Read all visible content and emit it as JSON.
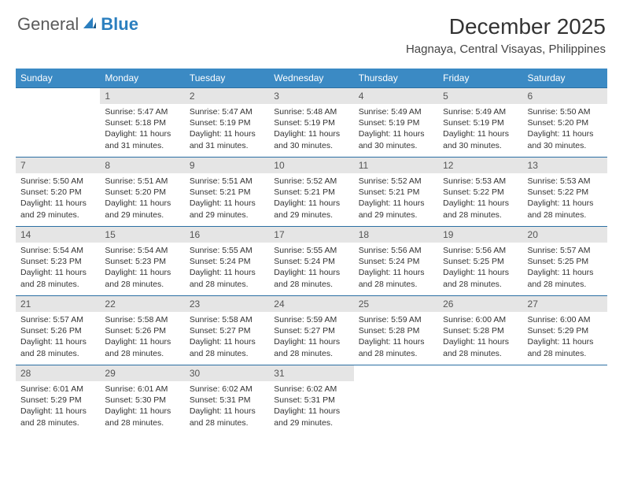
{
  "logo": {
    "text1": "General",
    "text2": "Blue"
  },
  "title": "December 2025",
  "location": "Hagnaya, Central Visayas, Philippines",
  "colors": {
    "header_bg": "#3b8ac4",
    "header_text": "#ffffff",
    "daynum_bg": "#e5e5e5",
    "row_border": "#2b6fa3",
    "logo_blue": "#2b7fbf"
  },
  "weekdays": [
    "Sunday",
    "Monday",
    "Tuesday",
    "Wednesday",
    "Thursday",
    "Friday",
    "Saturday"
  ],
  "first_weekday_index": 1,
  "days": [
    {
      "n": 1,
      "sunrise": "5:47 AM",
      "sunset": "5:18 PM",
      "daylight": "11 hours and 31 minutes."
    },
    {
      "n": 2,
      "sunrise": "5:47 AM",
      "sunset": "5:19 PM",
      "daylight": "11 hours and 31 minutes."
    },
    {
      "n": 3,
      "sunrise": "5:48 AM",
      "sunset": "5:19 PM",
      "daylight": "11 hours and 30 minutes."
    },
    {
      "n": 4,
      "sunrise": "5:49 AM",
      "sunset": "5:19 PM",
      "daylight": "11 hours and 30 minutes."
    },
    {
      "n": 5,
      "sunrise": "5:49 AM",
      "sunset": "5:19 PM",
      "daylight": "11 hours and 30 minutes."
    },
    {
      "n": 6,
      "sunrise": "5:50 AM",
      "sunset": "5:20 PM",
      "daylight": "11 hours and 30 minutes."
    },
    {
      "n": 7,
      "sunrise": "5:50 AM",
      "sunset": "5:20 PM",
      "daylight": "11 hours and 29 minutes."
    },
    {
      "n": 8,
      "sunrise": "5:51 AM",
      "sunset": "5:20 PM",
      "daylight": "11 hours and 29 minutes."
    },
    {
      "n": 9,
      "sunrise": "5:51 AM",
      "sunset": "5:21 PM",
      "daylight": "11 hours and 29 minutes."
    },
    {
      "n": 10,
      "sunrise": "5:52 AM",
      "sunset": "5:21 PM",
      "daylight": "11 hours and 29 minutes."
    },
    {
      "n": 11,
      "sunrise": "5:52 AM",
      "sunset": "5:21 PM",
      "daylight": "11 hours and 29 minutes."
    },
    {
      "n": 12,
      "sunrise": "5:53 AM",
      "sunset": "5:22 PM",
      "daylight": "11 hours and 28 minutes."
    },
    {
      "n": 13,
      "sunrise": "5:53 AM",
      "sunset": "5:22 PM",
      "daylight": "11 hours and 28 minutes."
    },
    {
      "n": 14,
      "sunrise": "5:54 AM",
      "sunset": "5:23 PM",
      "daylight": "11 hours and 28 minutes."
    },
    {
      "n": 15,
      "sunrise": "5:54 AM",
      "sunset": "5:23 PM",
      "daylight": "11 hours and 28 minutes."
    },
    {
      "n": 16,
      "sunrise": "5:55 AM",
      "sunset": "5:24 PM",
      "daylight": "11 hours and 28 minutes."
    },
    {
      "n": 17,
      "sunrise": "5:55 AM",
      "sunset": "5:24 PM",
      "daylight": "11 hours and 28 minutes."
    },
    {
      "n": 18,
      "sunrise": "5:56 AM",
      "sunset": "5:24 PM",
      "daylight": "11 hours and 28 minutes."
    },
    {
      "n": 19,
      "sunrise": "5:56 AM",
      "sunset": "5:25 PM",
      "daylight": "11 hours and 28 minutes."
    },
    {
      "n": 20,
      "sunrise": "5:57 AM",
      "sunset": "5:25 PM",
      "daylight": "11 hours and 28 minutes."
    },
    {
      "n": 21,
      "sunrise": "5:57 AM",
      "sunset": "5:26 PM",
      "daylight": "11 hours and 28 minutes."
    },
    {
      "n": 22,
      "sunrise": "5:58 AM",
      "sunset": "5:26 PM",
      "daylight": "11 hours and 28 minutes."
    },
    {
      "n": 23,
      "sunrise": "5:58 AM",
      "sunset": "5:27 PM",
      "daylight": "11 hours and 28 minutes."
    },
    {
      "n": 24,
      "sunrise": "5:59 AM",
      "sunset": "5:27 PM",
      "daylight": "11 hours and 28 minutes."
    },
    {
      "n": 25,
      "sunrise": "5:59 AM",
      "sunset": "5:28 PM",
      "daylight": "11 hours and 28 minutes."
    },
    {
      "n": 26,
      "sunrise": "6:00 AM",
      "sunset": "5:28 PM",
      "daylight": "11 hours and 28 minutes."
    },
    {
      "n": 27,
      "sunrise": "6:00 AM",
      "sunset": "5:29 PM",
      "daylight": "11 hours and 28 minutes."
    },
    {
      "n": 28,
      "sunrise": "6:01 AM",
      "sunset": "5:29 PM",
      "daylight": "11 hours and 28 minutes."
    },
    {
      "n": 29,
      "sunrise": "6:01 AM",
      "sunset": "5:30 PM",
      "daylight": "11 hours and 28 minutes."
    },
    {
      "n": 30,
      "sunrise": "6:02 AM",
      "sunset": "5:31 PM",
      "daylight": "11 hours and 28 minutes."
    },
    {
      "n": 31,
      "sunrise": "6:02 AM",
      "sunset": "5:31 PM",
      "daylight": "11 hours and 29 minutes."
    }
  ],
  "labels": {
    "sunrise": "Sunrise:",
    "sunset": "Sunset:",
    "daylight": "Daylight:"
  }
}
